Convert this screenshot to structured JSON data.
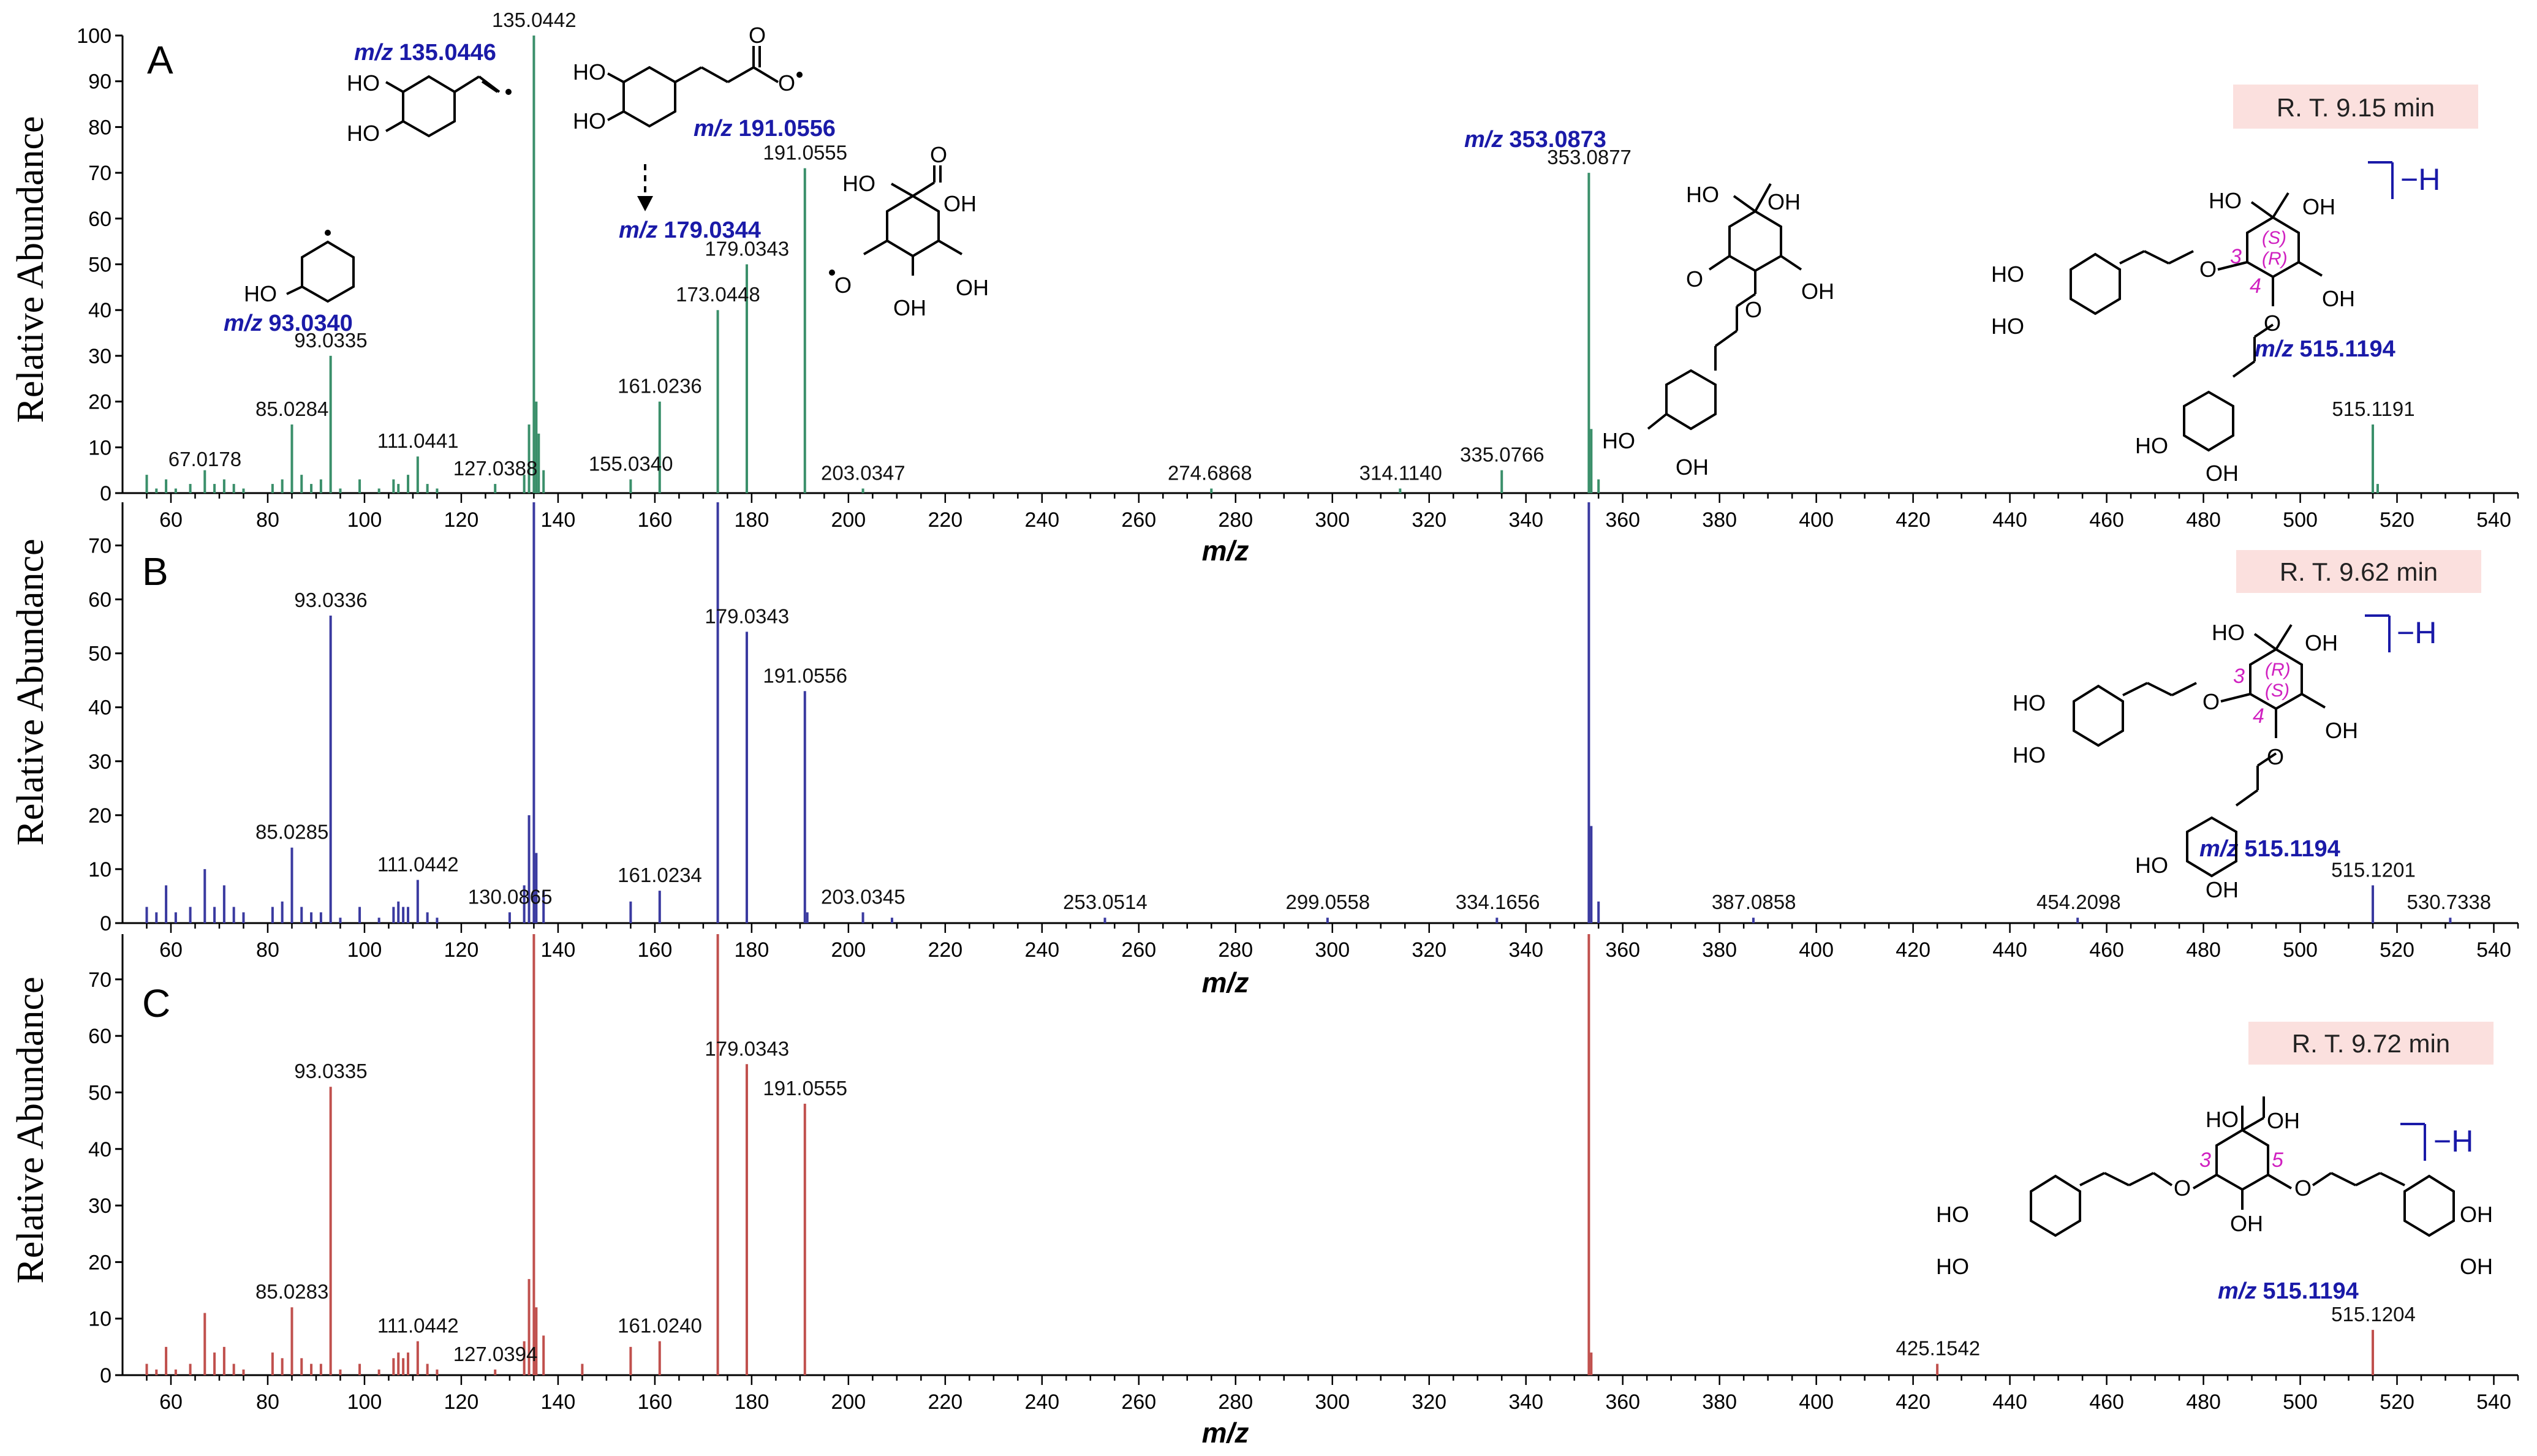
{
  "figure": {
    "y_axis_label": "Relative Abundance",
    "x_axis_label": "m/z",
    "mz_prefix": "m/z"
  },
  "chart_data": [
    {
      "type": "bar",
      "panel": "A",
      "rt_label": "R. T.  9.15 min",
      "bar_color": "#3a8f6a",
      "xlim": [
        50,
        545
      ],
      "ylim": [
        0,
        100
      ],
      "yticks": [
        0,
        10,
        20,
        30,
        40,
        50,
        60,
        70,
        80,
        90,
        100
      ],
      "x_label": "m/z",
      "y_label": "Relative Abundance",
      "grid": false,
      "peaks": [
        [
          55,
          4
        ],
        [
          57,
          1
        ],
        [
          59,
          3
        ],
        [
          61,
          1
        ],
        [
          64,
          2
        ],
        [
          67,
          5
        ],
        [
          69,
          2
        ],
        [
          71,
          3
        ],
        [
          73,
          2
        ],
        [
          75,
          1
        ],
        [
          81,
          2
        ],
        [
          83,
          3
        ],
        [
          85,
          15
        ],
        [
          87,
          4
        ],
        [
          89,
          2
        ],
        [
          91,
          3
        ],
        [
          93,
          30
        ],
        [
          95,
          1
        ],
        [
          99,
          3
        ],
        [
          103,
          1
        ],
        [
          106,
          3
        ],
        [
          107,
          2
        ],
        [
          109,
          4
        ],
        [
          111,
          8
        ],
        [
          113,
          2
        ],
        [
          115,
          1
        ],
        [
          127,
          2
        ],
        [
          133,
          4
        ],
        [
          134,
          15
        ],
        [
          135,
          100
        ],
        [
          135.5,
          20
        ],
        [
          136,
          13
        ],
        [
          137,
          5
        ],
        [
          155,
          3
        ],
        [
          161,
          20
        ],
        [
          173,
          40
        ],
        [
          179,
          50
        ],
        [
          191,
          71
        ],
        [
          203,
          1
        ],
        [
          275,
          1
        ],
        [
          314,
          1
        ],
        [
          335,
          5
        ],
        [
          353,
          70
        ],
        [
          353.5,
          14
        ],
        [
          355,
          3
        ],
        [
          515,
          15
        ],
        [
          516,
          2
        ]
      ],
      "labels": [
        {
          "mz": 67.0178,
          "text": "67.0178",
          "rel": 4
        },
        {
          "mz": 85.0284,
          "text": "85.0284",
          "rel": 15
        },
        {
          "mz": 93.0335,
          "text": "93.0335",
          "rel": 30
        },
        {
          "mz": 111.0441,
          "text": "111.0441",
          "rel": 8
        },
        {
          "mz": 127.0388,
          "text": "127.0388",
          "rel": 2
        },
        {
          "mz": 135.0442,
          "text": "135.0442",
          "rel": 100
        },
        {
          "mz": 155.034,
          "text": "155.0340",
          "rel": 3
        },
        {
          "mz": 161.0236,
          "text": "161.0236",
          "rel": 20
        },
        {
          "mz": 173.0448,
          "text": "173.0448",
          "rel": 40
        },
        {
          "mz": 179.0343,
          "text": "179.0343",
          "rel": 50
        },
        {
          "mz": 191.0555,
          "text": "191.0555",
          "rel": 71
        },
        {
          "mz": 203.0347,
          "text": "203.0347",
          "rel": 1
        },
        {
          "mz": 274.6868,
          "text": "274.6868",
          "rel": 1
        },
        {
          "mz": 314.114,
          "text": "314.1140",
          "rel": 1
        },
        {
          "mz": 335.0766,
          "text": "335.0766",
          "rel": 5
        },
        {
          "mz": 353.0877,
          "text": "353.0877",
          "rel": 70
        },
        {
          "mz": 515.1191,
          "text": "515.1191",
          "rel": 15
        }
      ],
      "annotations": [
        "m/z 135.0446",
        "m/z 191.0556",
        "m/z 179.0344",
        "m/z 93.0340",
        "m/z 353.0873",
        "m/z 515.1194"
      ]
    },
    {
      "type": "bar",
      "panel": "B",
      "rt_label": "R. T.  9.62 min",
      "bar_color": "#3a3aa0",
      "xlim": [
        50,
        545
      ],
      "ylim": [
        0,
        78
      ],
      "yticks": [
        0,
        10,
        20,
        30,
        40,
        50,
        60,
        70
      ],
      "x_label": "m/z",
      "y_label": "Relative Abundance",
      "grid": false,
      "peaks": [
        [
          55,
          3
        ],
        [
          57,
          2
        ],
        [
          59,
          7
        ],
        [
          61,
          2
        ],
        [
          64,
          3
        ],
        [
          67,
          10
        ],
        [
          69,
          3
        ],
        [
          71,
          7
        ],
        [
          73,
          3
        ],
        [
          75,
          2
        ],
        [
          81,
          3
        ],
        [
          83,
          4
        ],
        [
          85,
          14
        ],
        [
          87,
          3
        ],
        [
          89,
          2
        ],
        [
          91,
          2
        ],
        [
          93,
          57
        ],
        [
          95,
          1
        ],
        [
          99,
          3
        ],
        [
          103,
          1
        ],
        [
          106,
          3
        ],
        [
          107,
          4
        ],
        [
          108,
          3
        ],
        [
          109,
          3
        ],
        [
          111,
          8
        ],
        [
          113,
          2
        ],
        [
          115,
          1
        ],
        [
          130,
          2
        ],
        [
          133,
          7
        ],
        [
          134,
          20
        ],
        [
          135,
          100
        ],
        [
          135.5,
          13
        ],
        [
          137,
          6
        ],
        [
          155,
          4
        ],
        [
          161,
          6
        ],
        [
          173,
          100
        ],
        [
          179,
          54
        ],
        [
          191,
          43
        ],
        [
          191.5,
          2
        ],
        [
          203,
          2
        ],
        [
          209,
          1
        ],
        [
          253,
          1
        ],
        [
          299,
          1
        ],
        [
          334,
          1
        ],
        [
          353,
          100
        ],
        [
          353.5,
          18
        ],
        [
          355,
          4
        ],
        [
          387,
          1
        ],
        [
          454,
          1
        ],
        [
          515,
          7
        ],
        [
          531,
          1
        ]
      ],
      "labels": [
        {
          "mz": 85.0285,
          "text": "85.0285",
          "rel": 14
        },
        {
          "mz": 93.0336,
          "text": "93.0336",
          "rel": 57
        },
        {
          "mz": 111.0442,
          "text": "111.0442",
          "rel": 8
        },
        {
          "mz": 130.0865,
          "text": "130.0865",
          "rel": 2
        },
        {
          "mz": 161.0234,
          "text": "161.0234",
          "rel": 6
        },
        {
          "mz": 179.0343,
          "text": "179.0343",
          "rel": 54
        },
        {
          "mz": 191.0556,
          "text": "191.0556",
          "rel": 43
        },
        {
          "mz": 203.0345,
          "text": "203.0345",
          "rel": 2
        },
        {
          "mz": 253.0514,
          "text": "253.0514",
          "rel": 1
        },
        {
          "mz": 299.0558,
          "text": "299.0558",
          "rel": 1
        },
        {
          "mz": 334.1656,
          "text": "334.1656",
          "rel": 1
        },
        {
          "mz": 387.0858,
          "text": "387.0858",
          "rel": 1
        },
        {
          "mz": 454.2098,
          "text": "454.2098",
          "rel": 1
        },
        {
          "mz": 515.1201,
          "text": "515.1201",
          "rel": 7
        },
        {
          "mz": 530.7338,
          "text": "530.7338",
          "rel": 1
        }
      ],
      "annotations": [
        "m/z 515.1194"
      ]
    },
    {
      "type": "bar",
      "panel": "C",
      "rt_label": "R. T.  9.72 min",
      "bar_color": "#c0504d",
      "xlim": [
        50,
        545
      ],
      "ylim": [
        0,
        78
      ],
      "yticks": [
        0,
        10,
        20,
        30,
        40,
        50,
        60,
        70
      ],
      "x_label": "m/z",
      "y_label": "Relative Abundance",
      "grid": false,
      "peaks": [
        [
          55,
          2
        ],
        [
          57,
          1
        ],
        [
          59,
          5
        ],
        [
          61,
          1
        ],
        [
          64,
          2
        ],
        [
          67,
          11
        ],
        [
          69,
          4
        ],
        [
          71,
          5
        ],
        [
          73,
          2
        ],
        [
          75,
          1
        ],
        [
          81,
          4
        ],
        [
          83,
          3
        ],
        [
          85,
          12
        ],
        [
          87,
          3
        ],
        [
          89,
          2
        ],
        [
          91,
          2
        ],
        [
          93,
          51
        ],
        [
          95,
          1
        ],
        [
          99,
          2
        ],
        [
          103,
          1
        ],
        [
          106,
          3
        ],
        [
          107,
          4
        ],
        [
          108,
          3
        ],
        [
          109,
          4
        ],
        [
          111,
          6
        ],
        [
          113,
          2
        ],
        [
          115,
          1
        ],
        [
          127,
          1
        ],
        [
          133,
          6
        ],
        [
          134,
          17
        ],
        [
          135,
          100
        ],
        [
          135.5,
          12
        ],
        [
          137,
          7
        ],
        [
          145,
          2
        ],
        [
          155,
          5
        ],
        [
          161,
          6
        ],
        [
          173,
          100
        ],
        [
          179,
          55
        ],
        [
          191,
          48
        ],
        [
          353,
          100
        ],
        [
          353.5,
          4
        ],
        [
          425,
          2
        ],
        [
          515,
          8
        ]
      ],
      "labels": [
        {
          "mz": 85.0283,
          "text": "85.0283",
          "rel": 12
        },
        {
          "mz": 93.0335,
          "text": "93.0335",
          "rel": 51
        },
        {
          "mz": 111.0442,
          "text": "111.0442",
          "rel": 6
        },
        {
          "mz": 127.0394,
          "text": "127.0394",
          "rel": 1
        },
        {
          "mz": 161.024,
          "text": "161.0240",
          "rel": 6
        },
        {
          "mz": 179.0343,
          "text": "179.0343",
          "rel": 55
        },
        {
          "mz": 191.0555,
          "text": "191.0555",
          "rel": 48
        },
        {
          "mz": 425.1542,
          "text": "425.1542",
          "rel": 2
        },
        {
          "mz": 515.1204,
          "text": "515.1204",
          "rel": 8
        }
      ],
      "annotations": [
        "m/z 515.1194"
      ]
    }
  ],
  "structures": {
    "ho": "HO",
    "oh": "OH",
    "oh_lower": "OH",
    "carboxyl": "OH",
    "o": "O",
    "o_radical": "O",
    "minus_h": "−H",
    "stereo_s": "(S)",
    "stereo_r": "(R)",
    "pos3": "3",
    "pos4": "4",
    "pos5": "5"
  },
  "colors": {
    "annotation_blue": "#1a1aa8",
    "rt_box_fill": "#fbe0de",
    "stereo_magenta": "#d020c0"
  }
}
